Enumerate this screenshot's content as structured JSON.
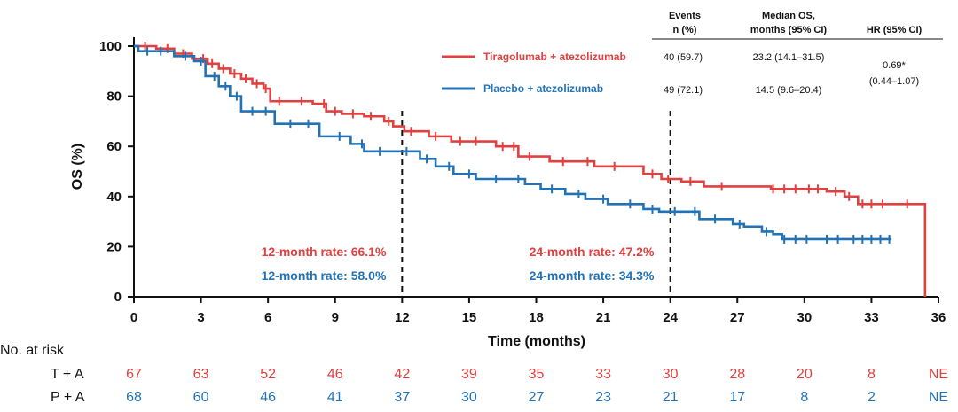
{
  "chart_data": {
    "type": "line",
    "subtype": "kaplan-meier",
    "xlabel": "Time (months)",
    "ylabel": "OS (%)",
    "xlim": [
      0,
      36
    ],
    "ylim": [
      0,
      100
    ],
    "xticks": [
      "0",
      "3",
      "6",
      "9",
      "12",
      "15",
      "18",
      "21",
      "24",
      "27",
      "30",
      "33",
      "36"
    ],
    "yticks": [
      "0",
      "20",
      "40",
      "60",
      "80",
      "100"
    ],
    "reference_lines_x": [
      12,
      24
    ],
    "table_headers": {
      "events": [
        "Events",
        "n (%)"
      ],
      "median": [
        "Median OS,",
        "months (95% CI)"
      ],
      "hr": [
        "HR (95% CI)"
      ]
    },
    "hr_text": [
      "0.69*",
      "(0.44–1.07)"
    ],
    "series": [
      {
        "name": "Tiragolumab + atezolizumab",
        "color": "#e0403f",
        "events": "40 (59.7)",
        "median_os": "23.2 (14.1–31.5)",
        "rate12": "12-month rate: 66.1%",
        "rate24": "24-month rate: 47.2%",
        "steps": [
          [
            0,
            100
          ],
          [
            1,
            99
          ],
          [
            1.8,
            97
          ],
          [
            2.6,
            95
          ],
          [
            3.3,
            93
          ],
          [
            3.8,
            91
          ],
          [
            4.3,
            89
          ],
          [
            4.8,
            87
          ],
          [
            5.3,
            85
          ],
          [
            5.8,
            83
          ],
          [
            6.1,
            78
          ],
          [
            8,
            77
          ],
          [
            8.6,
            74
          ],
          [
            9.3,
            73
          ],
          [
            10.3,
            72
          ],
          [
            11.2,
            70
          ],
          [
            11.6,
            68
          ],
          [
            12.1,
            66
          ],
          [
            13.2,
            64
          ],
          [
            14.2,
            62
          ],
          [
            16.2,
            60
          ],
          [
            17.2,
            56
          ],
          [
            18.6,
            54
          ],
          [
            20.6,
            52
          ],
          [
            22.8,
            49
          ],
          [
            23.6,
            47
          ],
          [
            24.5,
            46
          ],
          [
            25.5,
            44
          ],
          [
            28.5,
            43
          ],
          [
            31.0,
            42
          ],
          [
            31.8,
            40
          ],
          [
            32.4,
            37
          ],
          [
            35.4,
            37
          ],
          [
            35.4,
            0
          ]
        ],
        "censor_x": [
          0.5,
          1.5,
          2.2,
          3.1,
          3.5,
          4.0,
          4.5,
          5.0,
          5.5,
          5.9,
          6.5,
          7.5,
          8.5,
          9.0,
          9.8,
          10.6,
          11.4,
          12.4,
          13.5,
          14.6,
          15.3,
          16.5,
          17.0,
          17.7,
          19.2,
          20.3,
          21.5,
          23.2,
          23.9,
          24.9,
          26.3,
          28.6,
          29.1,
          29.6,
          30.2,
          30.6,
          31.4,
          32.0,
          32.6,
          33.0,
          33.5,
          34.6
        ]
      },
      {
        "name": "Placebo + atezolizumab",
        "color": "#2272b5",
        "events": "49 (72.1)",
        "median_os": "14.5 (9.6–20.4)",
        "rate12": "12-month rate: 58.0%",
        "rate24": "24-month rate: 34.3%",
        "steps": [
          [
            0,
            100
          ],
          [
            0.2,
            98
          ],
          [
            1.8,
            96
          ],
          [
            2.7,
            94
          ],
          [
            3.2,
            88
          ],
          [
            3.8,
            84
          ],
          [
            4.3,
            80
          ],
          [
            4.8,
            74
          ],
          [
            6.3,
            69
          ],
          [
            8.3,
            64
          ],
          [
            9.7,
            61
          ],
          [
            10.3,
            58
          ],
          [
            12.8,
            55
          ],
          [
            13.5,
            52
          ],
          [
            14.3,
            49
          ],
          [
            15.3,
            47
          ],
          [
            17.5,
            45
          ],
          [
            18.2,
            43
          ],
          [
            19.3,
            41
          ],
          [
            20.2,
            39
          ],
          [
            21.2,
            37
          ],
          [
            22.8,
            35
          ],
          [
            23.5,
            34
          ],
          [
            25.3,
            31
          ],
          [
            26.8,
            29
          ],
          [
            27.3,
            28
          ],
          [
            28.1,
            26
          ],
          [
            28.6,
            25
          ],
          [
            29.0,
            23
          ],
          [
            33.9,
            23
          ]
        ],
        "censor_x": [
          0.6,
          1.2,
          2.3,
          3.0,
          3.6,
          4.1,
          4.6,
          5.3,
          5.9,
          7.0,
          7.8,
          9.2,
          10.2,
          11.0,
          12.2,
          13.1,
          14.1,
          15.0,
          16.2,
          17.2,
          18.7,
          19.9,
          21.0,
          22.2,
          23.2,
          24.2,
          25.1,
          26.0,
          27.1,
          28.3,
          29.1,
          29.6,
          30.1,
          31.0,
          31.5,
          32.2,
          32.6,
          33.0,
          33.4,
          33.8
        ]
      }
    ],
    "risk_table": {
      "title": "No. at risk",
      "rows": [
        {
          "label": "T + A",
          "color": "#e0403f",
          "values": [
            "67",
            "63",
            "52",
            "46",
            "42",
            "39",
            "35",
            "33",
            "30",
            "28",
            "20",
            "8",
            "NE"
          ]
        },
        {
          "label": "P + A",
          "color": "#2272b5",
          "values": [
            "68",
            "60",
            "46",
            "41",
            "37",
            "30",
            "27",
            "23",
            "21",
            "17",
            "8",
            "2",
            "NE"
          ]
        }
      ]
    }
  }
}
